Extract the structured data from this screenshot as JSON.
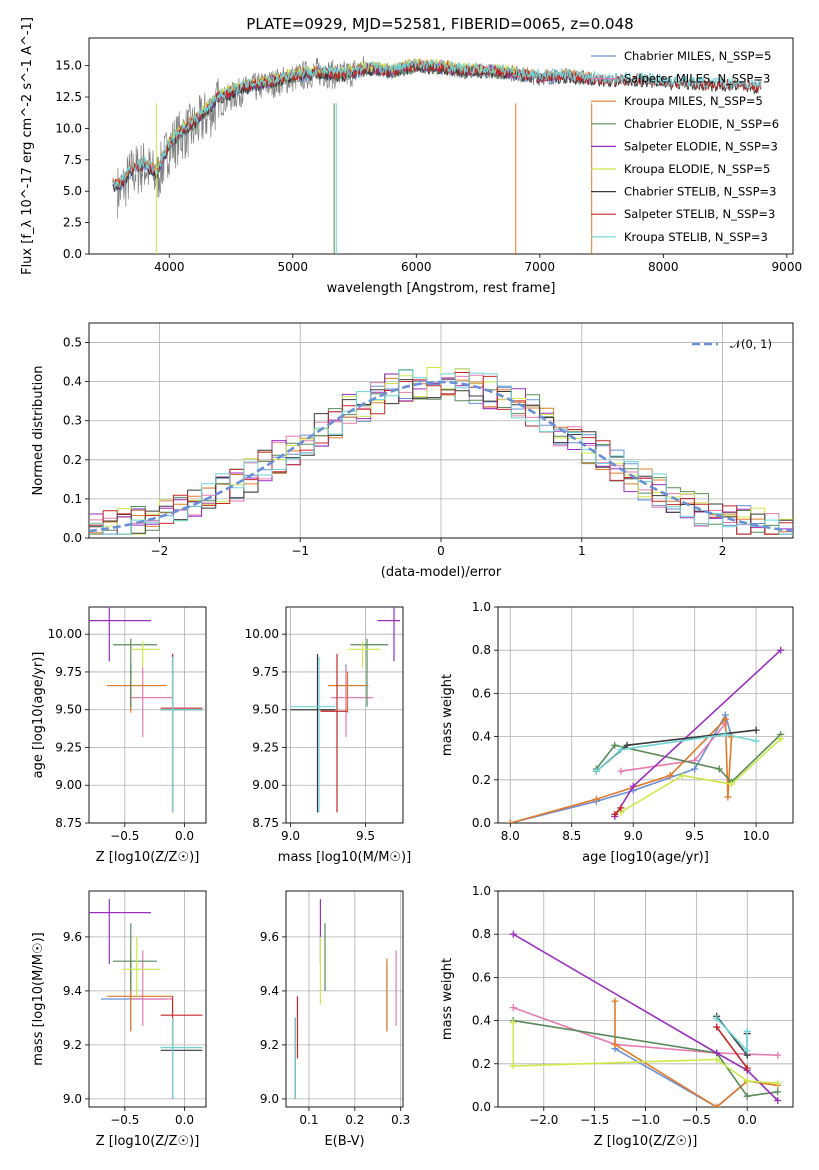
{
  "figure_title": "PLATE=0929, MJD=52581, FIBERID=0065, z=0.048",
  "colors": [
    "#6b8fd6",
    "#e57bb0",
    "#e07b2a",
    "#5a8a5a",
    "#9a2fbf",
    "#cde84a",
    "#3a3a3a",
    "#c62828",
    "#6fd4d8"
  ],
  "chart_data": [
    {
      "id": "spectrum",
      "type": "line",
      "title": "PLATE=0929, MJD=52581, FIBERID=0065, z=0.048",
      "xlabel": "wavelength [Angstrom, rest frame]",
      "ylabel": "Flux [f_λ 10^-17 erg cm^-2 s^-1 A^-1]",
      "xlim": [
        3350,
        9050
      ],
      "ylim": [
        0,
        17.2
      ],
      "xticks": [
        4000,
        5000,
        6000,
        7000,
        8000,
        9000
      ],
      "yticks": [
        0.0,
        2.5,
        5.0,
        7.5,
        10.0,
        12.5,
        15.0
      ],
      "legend_position": "right",
      "legend": [
        "Chabrier MILES, N_SSP=5",
        "Salpeter MILES, N_SSP=3",
        "Kroupa MILES, N_SSP=5",
        "Chabrier ELODIE, N_SSP=6",
        "Salpeter ELODIE, N_SSP=3",
        "Kroupa ELODIE, N_SSP=5",
        "Chabrier STELIB, N_SSP=3",
        "Salpeter STELIB, N_SSP=3",
        "Kroupa STELIB, N_SSP=3"
      ],
      "data_series": {
        "name": "data",
        "x": [
          3600,
          3700,
          3800,
          3900,
          4000,
          4100,
          4200,
          4300,
          4400,
          4600,
          4800,
          5000,
          5200,
          5400,
          5600,
          5800,
          6000,
          6200,
          6400,
          6600,
          6800,
          7000,
          7200,
          7400,
          7600,
          7800,
          8000,
          8200,
          8400,
          8600,
          8800
        ],
        "y": [
          5.0,
          6.5,
          7.0,
          6.0,
          8.5,
          9.5,
          10.0,
          11.0,
          12.0,
          13.0,
          13.5,
          14.0,
          14.5,
          14.2,
          14.8,
          14.5,
          15.0,
          14.8,
          14.5,
          14.6,
          14.3,
          14.0,
          14.2,
          14.0,
          13.8,
          13.9,
          13.7,
          13.6,
          13.5,
          13.5,
          13.3
        ]
      },
      "model_extent": {
        "MILES": [
          3540,
          7410
        ],
        "ELODIE": [
          3900,
          6800
        ],
        "STELIB": [
          3540,
          8790
        ]
      },
      "model_y": [
        5.5,
        6.8,
        7.2,
        6.5,
        8.8,
        9.8,
        10.5,
        11.5,
        12.5,
        13.3,
        13.7,
        14.2,
        14.5,
        14.3,
        14.8,
        14.6,
        15.0,
        14.9,
        14.6,
        14.6,
        14.4,
        14.1,
        14.2,
        14.0,
        13.8,
        13.9,
        13.7,
        13.6,
        13.5,
        13.5,
        13.3
      ]
    },
    {
      "id": "residuals",
      "type": "line",
      "xlabel": "(data-model)/error",
      "ylabel": "Normed distribution",
      "xlim": [
        -2.5,
        2.5
      ],
      "ylim": [
        0,
        0.55
      ],
      "xticks": [
        -2,
        -1,
        0,
        1,
        2
      ],
      "yticks": [
        0.0,
        0.1,
        0.2,
        0.3,
        0.4,
        0.5
      ],
      "legend_position": "top-right",
      "legend": [
        "𝒩(0, 1)"
      ],
      "bin_width": 0.1
    },
    {
      "id": "age_vs_Z",
      "type": "scatter",
      "xlabel": "Z [log10(Z/Z☉)]",
      "ylabel": "age  [log10(age/yr)]",
      "xlim": [
        -0.8,
        0.18
      ],
      "ylim": [
        8.75,
        10.18
      ],
      "xticks": [
        -0.5,
        0.0
      ],
      "yticks": [
        8.75,
        9.0,
        9.25,
        9.5,
        9.75,
        10.0
      ],
      "points": [
        {
          "c": 0,
          "x": -0.45,
          "y": 9.66,
          "ex": [
            -0.65,
            -0.18
          ],
          "ey": [
            9.5,
            9.8
          ]
        },
        {
          "c": 1,
          "x": -0.35,
          "y": 9.58,
          "ex": [
            -0.45,
            -0.1
          ],
          "ey": [
            9.32,
            9.78
          ]
        },
        {
          "c": 2,
          "x": -0.45,
          "y": 9.66,
          "ex": [
            -0.65,
            -0.15
          ],
          "ey": [
            9.48,
            9.75
          ]
        },
        {
          "c": 3,
          "x": -0.45,
          "y": 9.93,
          "ex": [
            -0.6,
            -0.23
          ],
          "ey": [
            9.52,
            9.97
          ]
        },
        {
          "c": 4,
          "x": -0.63,
          "y": 10.09,
          "ex": [
            -0.8,
            -0.28
          ],
          "ey": [
            9.82,
            10.18
          ]
        },
        {
          "c": 5,
          "x": -0.35,
          "y": 9.9,
          "ex": [
            -0.45,
            -0.2
          ],
          "ey": [
            9.78,
            9.95
          ]
        },
        {
          "c": 6,
          "x": -0.1,
          "y": 9.5,
          "ex": [
            -0.2,
            0.15
          ],
          "ey": [
            8.82,
            9.87
          ]
        },
        {
          "c": 7,
          "x": -0.1,
          "y": 9.51,
          "ex": [
            -0.2,
            0.15
          ],
          "ey": [
            8.82,
            9.87
          ]
        },
        {
          "c": 8,
          "x": -0.1,
          "y": 9.5,
          "ex": [
            -0.2,
            0.15
          ],
          "ey": [
            8.82,
            9.85
          ]
        }
      ]
    },
    {
      "id": "age_vs_mass",
      "type": "scatter",
      "xlabel": "mass [log10(M/M☉)]",
      "ylabel": "",
      "xlim": [
        8.97,
        9.75
      ],
      "ylim": [
        8.75,
        10.18
      ],
      "xticks": [
        9.0,
        9.5
      ],
      "yticks": [
        8.75,
        9.0,
        9.25,
        9.5,
        9.75,
        10.0
      ],
      "points": [
        {
          "c": 0,
          "x": 9.37,
          "y": 9.66,
          "ex": [
            9.25,
            9.5
          ],
          "ey": [
            9.5,
            9.8
          ]
        },
        {
          "c": 1,
          "x": 9.37,
          "y": 9.58,
          "ex": [
            9.27,
            9.55
          ],
          "ey": [
            9.32,
            9.78
          ]
        },
        {
          "c": 2,
          "x": 9.38,
          "y": 9.66,
          "ex": [
            9.25,
            9.52
          ],
          "ey": [
            9.48,
            9.75
          ]
        },
        {
          "c": 3,
          "x": 9.51,
          "y": 9.93,
          "ex": [
            9.4,
            9.65
          ],
          "ey": [
            9.52,
            9.97
          ]
        },
        {
          "c": 4,
          "x": 9.69,
          "y": 10.09,
          "ex": [
            9.58,
            9.73
          ],
          "ey": [
            9.82,
            10.18
          ]
        },
        {
          "c": 5,
          "x": 9.48,
          "y": 9.9,
          "ex": [
            9.38,
            9.6
          ],
          "ey": [
            9.78,
            9.95
          ]
        },
        {
          "c": 6,
          "x": 9.18,
          "y": 9.5,
          "ex": [
            9.0,
            9.3
          ],
          "ey": [
            8.82,
            9.87
          ]
        },
        {
          "c": 7,
          "x": 9.31,
          "y": 9.49,
          "ex": [
            9.2,
            9.38
          ],
          "ey": [
            8.82,
            9.87
          ]
        },
        {
          "c": 8,
          "x": 9.19,
          "y": 9.52,
          "ex": [
            9.0,
            9.3
          ],
          "ey": [
            8.82,
            9.85
          ]
        }
      ]
    },
    {
      "id": "weight_vs_age",
      "type": "line",
      "xlabel": "age  [log10(age/yr)]",
      "ylabel": "mass weight",
      "xlim": [
        7.9,
        10.3
      ],
      "ylim": [
        0,
        1.0
      ],
      "xticks": [
        8.0,
        8.5,
        9.0,
        9.5,
        10.0
      ],
      "yticks": [
        0.0,
        0.2,
        0.4,
        0.6,
        0.8,
        1.0
      ],
      "series": [
        {
          "c": 0,
          "x": [
            8.0,
            8.7,
            9.0,
            9.5,
            9.75,
            9.8
          ],
          "y": [
            0.0,
            0.1,
            0.15,
            0.25,
            0.5,
            0.4
          ]
        },
        {
          "c": 1,
          "x": [
            8.9,
            9.5,
            9.75
          ],
          "y": [
            0.24,
            0.29,
            0.46
          ]
        },
        {
          "c": 2,
          "x": [
            8.0,
            8.7,
            9.3,
            9.75,
            9.77,
            9.8
          ],
          "y": [
            0.0,
            0.11,
            0.22,
            0.48,
            0.12,
            0.4
          ]
        },
        {
          "c": 3,
          "x": [
            8.7,
            8.85,
            9.7,
            9.8,
            10.2
          ],
          "y": [
            0.25,
            0.36,
            0.25,
            0.19,
            0.41
          ]
        },
        {
          "c": 4,
          "x": [
            8.85,
            9.0,
            10.2
          ],
          "y": [
            0.03,
            0.17,
            0.8
          ]
        },
        {
          "c": 5,
          "x": [
            8.9,
            9.4,
            9.8,
            10.2
          ],
          "y": [
            0.05,
            0.22,
            0.18,
            0.39
          ]
        },
        {
          "c": 6,
          "x": [
            8.7,
            8.95,
            10.0
          ],
          "y": [
            0.24,
            0.36,
            0.43
          ]
        },
        {
          "c": 7,
          "x": [
            8.85,
            8.9
          ],
          "y": [
            0.04,
            0.07
          ]
        },
        {
          "c": 8,
          "x": [
            8.7,
            8.9,
            9.75,
            10.0
          ],
          "y": [
            0.24,
            0.34,
            0.41,
            0.38
          ]
        }
      ]
    },
    {
      "id": "mass_vs_Z",
      "type": "scatter",
      "xlabel": "Z [log10(Z/Z☉)]",
      "ylabel": "mass [log10(M/M☉)]",
      "xlim": [
        -0.8,
        0.18
      ],
      "ylim": [
        8.97,
        9.77
      ],
      "xticks": [
        -0.5,
        0.0
      ],
      "yticks": [
        9.0,
        9.2,
        9.4,
        9.6
      ],
      "points": [
        {
          "c": 0,
          "x": -0.45,
          "y": 9.37,
          "ex": [
            -0.7,
            -0.15
          ],
          "ey": [
            9.25,
            9.5
          ]
        },
        {
          "c": 1,
          "x": -0.35,
          "y": 9.37,
          "ex": [
            -0.45,
            -0.1
          ],
          "ey": [
            9.27,
            9.55
          ]
        },
        {
          "c": 2,
          "x": -0.45,
          "y": 9.38,
          "ex": [
            -0.65,
            -0.1
          ],
          "ey": [
            9.25,
            9.52
          ]
        },
        {
          "c": 3,
          "x": -0.45,
          "y": 9.51,
          "ex": [
            -0.6,
            -0.23
          ],
          "ey": [
            9.4,
            9.65
          ]
        },
        {
          "c": 4,
          "x": -0.63,
          "y": 9.69,
          "ex": [
            -0.8,
            -0.28
          ],
          "ey": [
            9.5,
            9.74
          ]
        },
        {
          "c": 5,
          "x": -0.4,
          "y": 9.48,
          "ex": [
            -0.52,
            -0.2
          ],
          "ey": [
            9.38,
            9.6
          ]
        },
        {
          "c": 6,
          "x": -0.1,
          "y": 9.18,
          "ex": [
            -0.2,
            0.15
          ],
          "ey": [
            9.0,
            9.3
          ]
        },
        {
          "c": 7,
          "x": -0.1,
          "y": 9.31,
          "ex": [
            -0.2,
            0.15
          ],
          "ey": [
            9.2,
            9.38
          ]
        },
        {
          "c": 8,
          "x": -0.1,
          "y": 9.19,
          "ex": [
            -0.2,
            0.15
          ],
          "ey": [
            9.0,
            9.3
          ]
        }
      ]
    },
    {
      "id": "mass_vs_ebv",
      "type": "scatter",
      "xlabel": "E(B-V)",
      "ylabel": "",
      "xlim": [
        0.05,
        0.305
      ],
      "ylim": [
        8.97,
        9.77
      ],
      "xticks": [
        0.1,
        0.2,
        0.3
      ],
      "yticks": [
        9.0,
        9.2,
        9.4,
        9.6
      ],
      "points": [
        {
          "c": 0,
          "x": 0.27,
          "y": 9.37,
          "ey": [
            9.25,
            9.5
          ]
        },
        {
          "c": 1,
          "x": 0.29,
          "y": 9.37,
          "ey": [
            9.27,
            9.55
          ]
        },
        {
          "c": 2,
          "x": 0.27,
          "y": 9.38,
          "ey": [
            9.25,
            9.52
          ]
        },
        {
          "c": 3,
          "x": 0.135,
          "y": 9.51,
          "ey": [
            9.4,
            9.65
          ]
        },
        {
          "c": 4,
          "x": 0.125,
          "y": 9.69,
          "ey": [
            9.5,
            9.74
          ]
        },
        {
          "c": 5,
          "x": 0.125,
          "y": 9.48,
          "ey": [
            9.35,
            9.6
          ]
        },
        {
          "c": 6,
          "x": 0.07,
          "y": 9.18,
          "ey": [
            9.0,
            9.3
          ]
        },
        {
          "c": 7,
          "x": 0.075,
          "y": 9.31,
          "ey": [
            9.15,
            9.38
          ]
        },
        {
          "c": 8,
          "x": 0.07,
          "y": 9.19,
          "ey": [
            9.0,
            9.3
          ]
        }
      ]
    },
    {
      "id": "weight_vs_Z",
      "type": "line",
      "xlabel": "Z [log10(Z/Z☉)]",
      "ylabel": "mass weight",
      "xlim": [
        -2.45,
        0.45
      ],
      "ylim": [
        0,
        1.0
      ],
      "xticks": [
        -2.0,
        -1.5,
        -1.0,
        -0.5,
        0.0
      ],
      "yticks": [
        0.0,
        0.2,
        0.4,
        0.6,
        0.8,
        1.0
      ],
      "series": [
        {
          "c": 0,
          "x": [
            -1.3,
            -0.3,
            0.0
          ],
          "y": [
            0.27,
            0.0,
            0.12
          ]
        },
        {
          "c": 1,
          "x": [
            -2.3,
            -1.3,
            -0.3,
            0.3
          ],
          "y": [
            0.46,
            0.29,
            0.25,
            0.24
          ]
        },
        {
          "c": 2,
          "x": [
            -1.3,
            -1.3,
            -0.3,
            0.0,
            0.3
          ],
          "y": [
            0.49,
            0.29,
            0.0,
            0.12,
            0.1
          ]
        },
        {
          "c": 3,
          "x": [
            -2.3,
            -0.3,
            0.0,
            0.3
          ],
          "y": [
            0.4,
            0.25,
            0.05,
            0.07
          ]
        },
        {
          "c": 4,
          "x": [
            -2.3,
            -0.3,
            0.0,
            0.3
          ],
          "y": [
            0.8,
            0.25,
            0.17,
            0.03
          ]
        },
        {
          "c": 5,
          "x": [
            -2.3,
            -2.3,
            -0.3,
            0.0,
            0.3
          ],
          "y": [
            0.39,
            0.19,
            0.22,
            0.12,
            0.11
          ]
        },
        {
          "c": 6,
          "x": [
            -0.3,
            0.0,
            0.0
          ],
          "y": [
            0.42,
            0.24,
            0.34
          ]
        },
        {
          "c": 7,
          "x": [
            -0.3,
            0.0
          ],
          "y": [
            0.37,
            0.18
          ]
        },
        {
          "c": 8,
          "x": [
            -0.3,
            0.0,
            0.0
          ],
          "y": [
            0.41,
            0.26,
            0.35
          ]
        }
      ]
    }
  ]
}
